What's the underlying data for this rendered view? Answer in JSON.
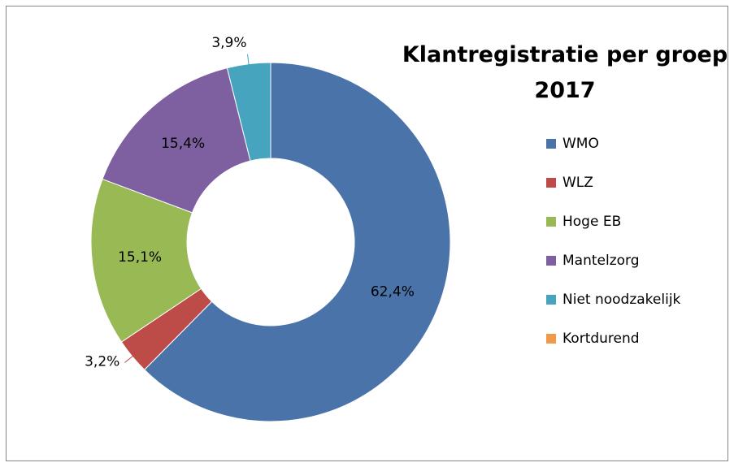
{
  "chart_data": {
    "type": "donut",
    "title": "Klantregistratie per groep 2017",
    "categories": [
      "WMO",
      "WLZ",
      "Hoge EB",
      "Mantelzorg",
      "Niet noodzakelijk",
      "Kortdurend"
    ],
    "values": [
      62.4,
      3.2,
      15.1,
      15.4,
      3.9,
      0
    ],
    "value_labels": [
      "62,4%",
      "3,2%",
      "15,1%",
      "15,4%",
      "3,9%",
      null
    ],
    "colors": [
      "#4a73a9",
      "#bd4b48",
      "#98b954",
      "#7e5f9f",
      "#47a4bf",
      "#f0994b"
    ],
    "legend": "right"
  }
}
